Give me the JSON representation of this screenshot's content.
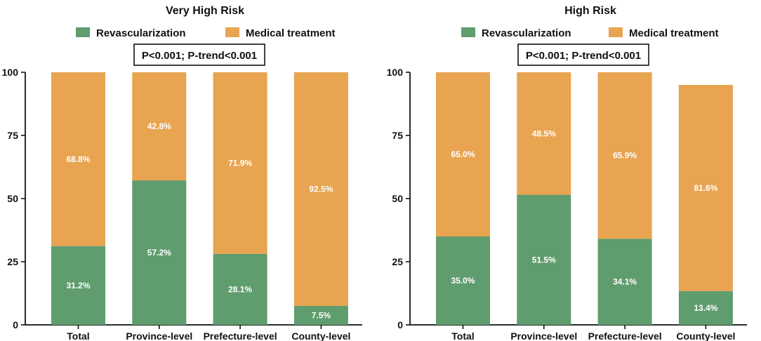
{
  "colors": {
    "revascularization": "#5f9c6e",
    "medical_treatment": "#e8a450",
    "axis": "#111111",
    "data_label": "#ffffff"
  },
  "legend": {
    "revascularization": "Revascularization",
    "medical_treatment": "Medical treatment"
  },
  "chart_data": [
    {
      "type": "bar",
      "stacked": true,
      "title": "Very High Risk",
      "stats_text": "P<0.001; P-trend<0.001",
      "categories": [
        "Total",
        "Province-level",
        "Prefecture-level",
        "County-level"
      ],
      "series": [
        {
          "name": "Revascularization",
          "values": [
            31.2,
            57.2,
            28.1,
            7.5
          ],
          "labels": [
            "31.2%",
            "57.2%",
            "28.1%",
            "7.5%"
          ]
        },
        {
          "name": "Medical treatment",
          "values": [
            68.8,
            42.8,
            71.9,
            92.5
          ],
          "labels": [
            "68.8%",
            "42.8%",
            "71.9%",
            "92.5%"
          ]
        }
      ],
      "ylim": [
        0,
        100
      ],
      "yticks": [
        0,
        25,
        50,
        75,
        100
      ],
      "ytick_labels": [
        "0",
        "25",
        "50",
        "75",
        "100"
      ],
      "xlabel": "",
      "ylabel": "",
      "legend_position": "top"
    },
    {
      "type": "bar",
      "stacked": true,
      "title": "High Risk",
      "stats_text": "P<0.001; P-trend<0.001",
      "categories": [
        "Total",
        "Province-level",
        "Prefecture-level",
        "County-level"
      ],
      "series": [
        {
          "name": "Revascularization",
          "values": [
            35.0,
            51.5,
            34.1,
            13.4
          ],
          "labels": [
            "35.0%",
            "51.5%",
            "34.1%",
            "13.4%"
          ]
        },
        {
          "name": "Medical treatment",
          "values": [
            65.0,
            48.5,
            65.9,
            81.6
          ],
          "labels": [
            "65.0%",
            "48.5%",
            "65.9%",
            "81.6%"
          ]
        }
      ],
      "ylim": [
        0,
        100
      ],
      "yticks": [
        0,
        25,
        50,
        75,
        100
      ],
      "ytick_labels": [
        "0",
        "25",
        "50",
        "75",
        "100"
      ],
      "xlabel": "",
      "ylabel": "",
      "legend_position": "top"
    }
  ]
}
